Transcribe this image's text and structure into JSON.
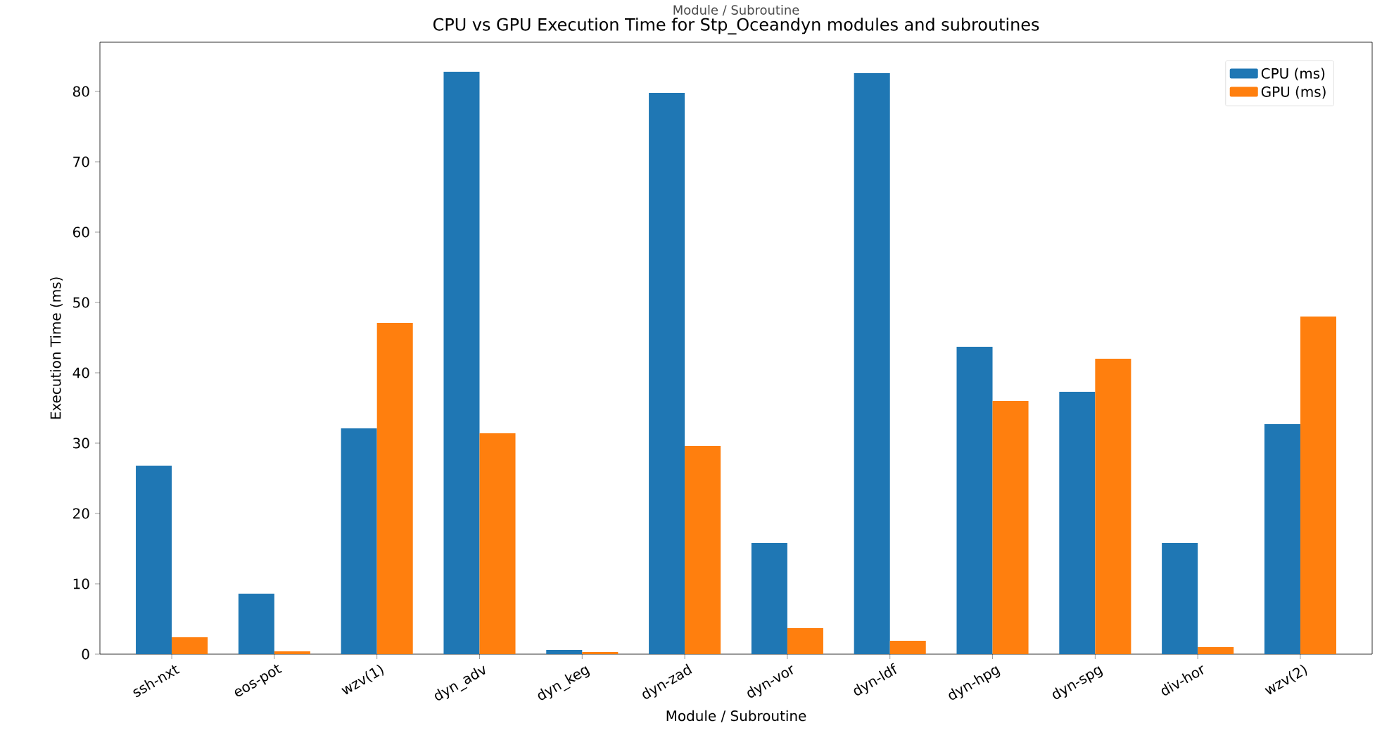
{
  "chart_data": {
    "type": "bar",
    "title": "CPU vs GPU Execution Time for Stp_Oceandyn modules and subroutines",
    "annotations": [
      "Module / Subroutine"
    ],
    "xlabel": "Module / Subroutine",
    "ylabel": "Execution Time (ms)",
    "categories": [
      "ssh-nxt",
      "eos-pot",
      "wzv(1)",
      "dyn_adv",
      "dyn_keg",
      "dyn-zad",
      "dyn-vor",
      "dyn-ldf",
      "dyn-hpg",
      "dyn-spg",
      "div-hor",
      "wzv(2)"
    ],
    "series": [
      {
        "name": "CPU (ms)",
        "color": "#1f77b4",
        "values": [
          26.8,
          8.6,
          32.1,
          82.8,
          0.6,
          79.8,
          15.8,
          82.6,
          43.7,
          37.3,
          15.8,
          32.7
        ]
      },
      {
        "name": "GPU (ms)",
        "color": "#ff7f0e",
        "values": [
          2.4,
          0.4,
          47.1,
          31.4,
          0.3,
          29.6,
          3.7,
          1.9,
          36.0,
          42.0,
          1.0,
          48.0
        ]
      }
    ],
    "ylim": [
      0,
      87
    ],
    "yticks": [
      0,
      10,
      20,
      30,
      40,
      50,
      60,
      70,
      80
    ],
    "grid": false,
    "legend": "top right"
  }
}
